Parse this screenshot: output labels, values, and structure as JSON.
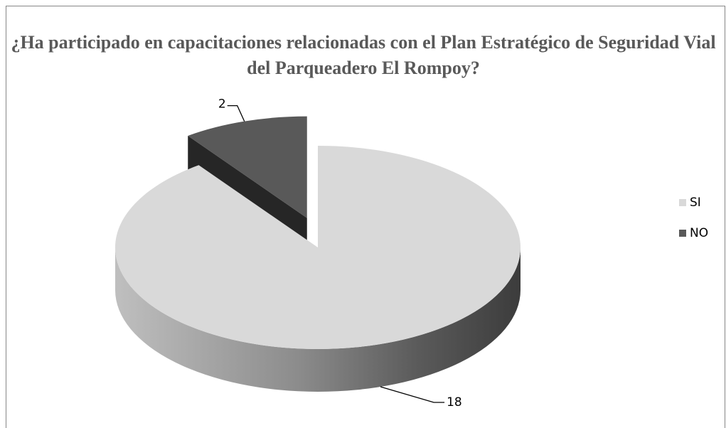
{
  "chart_data": {
    "type": "pie3d",
    "title": "¿Ha participado en capacitaciones relacionadas con el Plan Estratégico de Seguridad Vial del Parqueadero El Rompoy?",
    "categories": [
      "SI",
      "NO"
    ],
    "values": [
      18,
      2
    ],
    "colors": [
      "#d9d9d9",
      "#595959"
    ],
    "explode": [
      false,
      true
    ],
    "legend": "right"
  }
}
